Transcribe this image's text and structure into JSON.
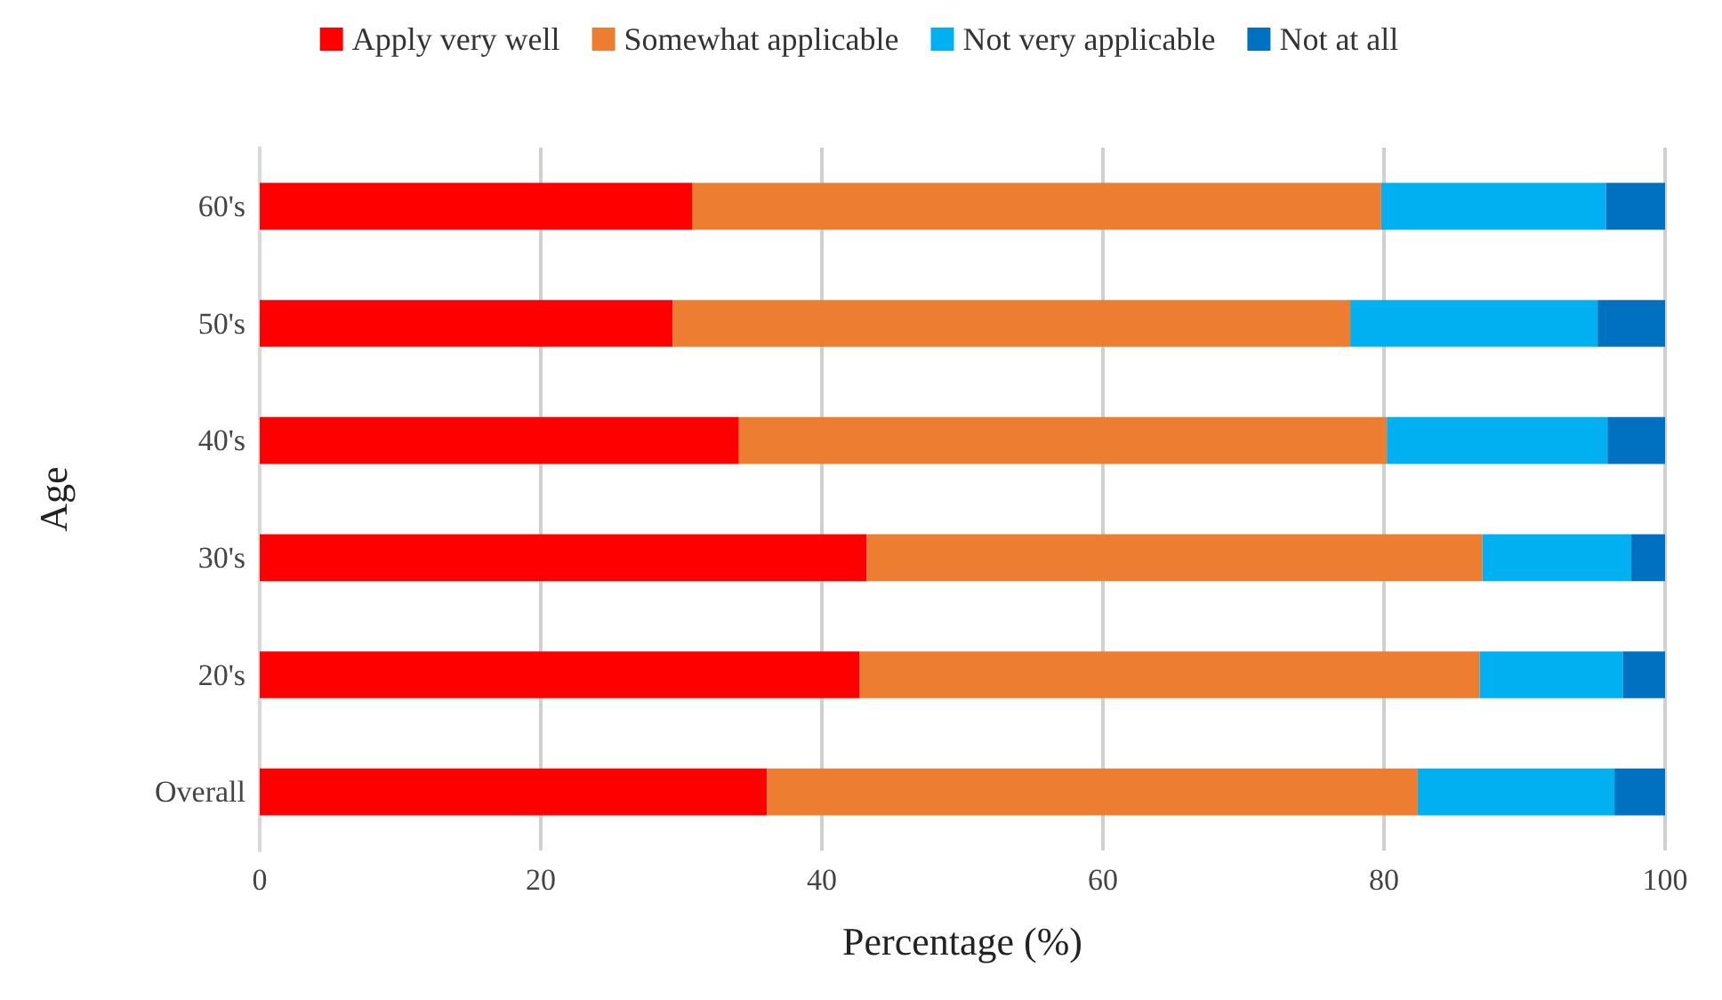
{
  "chart_data": {
    "type": "bar",
    "orientation": "horizontal",
    "stacked": true,
    "xlabel": "Percentage (%)",
    "ylabel": "Age",
    "categories": [
      "60's",
      "50's",
      "40's",
      "30's",
      "20's",
      "Overall"
    ],
    "series": [
      {
        "name": "Apply very well",
        "color": "#ff0000",
        "values": [
          30.8,
          29.4,
          34.1,
          43.2,
          42.7,
          36.1
        ]
      },
      {
        "name": "Somewhat applicable",
        "color": "#ed7d31",
        "values": [
          49.0,
          48.2,
          46.1,
          43.8,
          44.1,
          46.3
        ]
      },
      {
        "name": "Not very applicable",
        "color": "#00b0f0",
        "values": [
          16.0,
          17.6,
          15.7,
          10.6,
          10.2,
          14.0
        ]
      },
      {
        "name": "Not at all",
        "color": "#0070c0",
        "values": [
          4.2,
          4.8,
          4.1,
          2.4,
          3.0,
          3.6
        ]
      }
    ],
    "xlim": [
      0,
      100
    ],
    "xticks": [
      0,
      20,
      40,
      60,
      80,
      100
    ],
    "grid": "x",
    "legend": "top"
  }
}
